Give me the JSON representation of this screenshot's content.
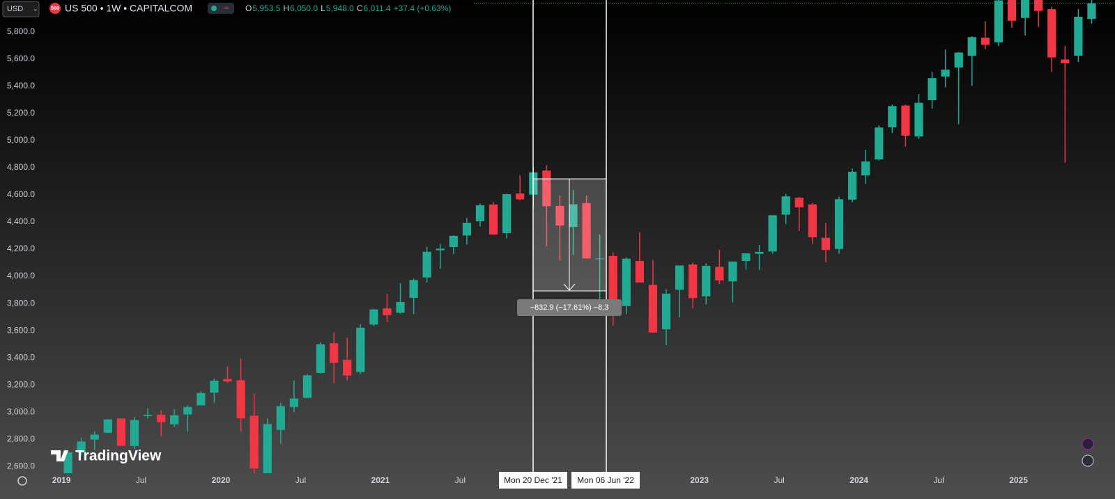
{
  "header": {
    "currency": "USD",
    "badge": "500",
    "symbol": "US 500 • 1W • CAPITALCOM",
    "ohlc": [
      {
        "label": "O",
        "value": "5,953.5"
      },
      {
        "label": "H",
        "value": "6,050.0"
      },
      {
        "label": "L",
        "value": "5,948.0"
      },
      {
        "label": "C",
        "value": "6,011.4"
      }
    ],
    "change": "+37.4 (+0.63%)"
  },
  "watermark": "TradingView",
  "measure": {
    "text": "−832.9 (−17.61%) −8,3",
    "start_label": "Mon 20 Dec '21",
    "end_label": "Mon 06 Jun '22"
  },
  "chart_data": {
    "type": "candlestick",
    "up_color": "#22ab94",
    "down_color": "#f23645",
    "xlim": [
      "2018-12",
      "2025-07"
    ],
    "ylim": [
      2550,
      6035
    ],
    "xticks": [
      {
        "value": "2019-01",
        "label": "2019"
      },
      {
        "value": "2019-07",
        "label": "Jul"
      },
      {
        "value": "2020-01",
        "label": "2020"
      },
      {
        "value": "2020-07",
        "label": "Jul"
      },
      {
        "value": "2021-01",
        "label": "2021"
      },
      {
        "value": "2021-07",
        "label": "Jul"
      },
      {
        "value": "2023-01",
        "label": "2023"
      },
      {
        "value": "2023-07",
        "label": "Jul"
      },
      {
        "value": "2024-01",
        "label": "2024"
      },
      {
        "value": "2024-07",
        "label": "Jul"
      },
      {
        "value": "2025-01",
        "label": "2025"
      }
    ],
    "yticks": [
      {
        "value": 2600,
        "label": "2,600.0"
      },
      {
        "value": 2800,
        "label": "2,800.0"
      },
      {
        "value": 3000,
        "label": "3,000.0"
      },
      {
        "value": 3200,
        "label": "3,200.0"
      },
      {
        "value": 3400,
        "label": "3,400.0"
      },
      {
        "value": 3600,
        "label": "3,600.0"
      },
      {
        "value": 3800,
        "label": "3,800.0"
      },
      {
        "value": 4000,
        "label": "4,000.0"
      },
      {
        "value": 4200,
        "label": "4,200.0"
      },
      {
        "value": 4400,
        "label": "4,400.0"
      },
      {
        "value": 4600,
        "label": "4,600.0"
      },
      {
        "value": 4800,
        "label": "4,800.0"
      },
      {
        "value": 5000,
        "label": "5,000.0"
      },
      {
        "value": 5200,
        "label": "5,200.0"
      },
      {
        "value": 5400,
        "label": "5,400.0"
      },
      {
        "value": 5600,
        "label": "5,600.0"
      },
      {
        "value": 5800,
        "label": "5,800.0"
      }
    ],
    "x": [
      "2019-01",
      "2019-02",
      "2019-03",
      "2019-04",
      "2019-05",
      "2019-06",
      "2019-07",
      "2019-08",
      "2019-09",
      "2019-10",
      "2019-11",
      "2019-12",
      "2020-01",
      "2020-02",
      "2020-03",
      "2020-04",
      "2020-05",
      "2020-06",
      "2020-07",
      "2020-08",
      "2020-09",
      "2020-10",
      "2020-11",
      "2020-12",
      "2021-01",
      "2021-02",
      "2021-03",
      "2021-04",
      "2021-05",
      "2021-06",
      "2021-07",
      "2021-08",
      "2021-09",
      "2021-10",
      "2021-11",
      "2021-12",
      "2022-01",
      "2022-02",
      "2022-03",
      "2022-04",
      "2022-05",
      "2022-06",
      "2022-07",
      "2022-08",
      "2022-09",
      "2022-10",
      "2022-11",
      "2022-12",
      "2023-01",
      "2023-02",
      "2023-03",
      "2023-04",
      "2023-05",
      "2023-06",
      "2023-07",
      "2023-08",
      "2023-09",
      "2023-10",
      "2023-11",
      "2023-12",
      "2024-01",
      "2024-02",
      "2024-03",
      "2024-04",
      "2024-05",
      "2024-06",
      "2024-07",
      "2024-08",
      "2024-09",
      "2024-10",
      "2024-11",
      "2024-12",
      "2025-01",
      "2025-02",
      "2025-03",
      "2025-04",
      "2025-05",
      "2025-06"
    ],
    "open": [
      2477,
      2702,
      2798,
      2848,
      2953,
      2751,
      2971,
      2981,
      2910,
      2983,
      3050,
      3143,
      3244,
      3235,
      2974,
      2499,
      2869,
      3038,
      3105,
      3289,
      3508,
      3385,
      3296,
      3645,
      3764,
      3732,
      3842,
      3992,
      4192,
      4216,
      4301,
      4406,
      4529,
      4318,
      4610,
      4602,
      4779,
      4519,
      4364,
      4540,
      4131,
      4150,
      3781,
      4113,
      3937,
      3610,
      3901,
      4087,
      3853,
      4070,
      3963,
      4113,
      4166,
      4183,
      4454,
      4579,
      4530,
      4284,
      4202,
      4565,
      4743,
      4861,
      5098,
      5258,
      5030,
      5297,
      5471,
      5538,
      5624,
      5757,
      5723,
      6040,
      5903,
      6041,
      5968,
      5597,
      5625,
      5896
    ],
    "high": [
      2708,
      2813,
      2860,
      2949,
      2954,
      2964,
      3028,
      3014,
      3022,
      3050,
      3154,
      3248,
      3338,
      3394,
      3136,
      2955,
      3068,
      3233,
      3280,
      3514,
      3588,
      3550,
      3646,
      3760,
      3870,
      3950,
      3983,
      4218,
      4238,
      4302,
      4430,
      4537,
      4546,
      4608,
      4743,
      4808,
      4819,
      4595,
      4637,
      4594,
      4307,
      4177,
      4140,
      4325,
      4120,
      3905,
      4080,
      4101,
      4095,
      4195,
      4110,
      4170,
      4231,
      4449,
      4607,
      4585,
      4541,
      4394,
      4587,
      4794,
      4932,
      5111,
      5265,
      5264,
      5342,
      5506,
      5670,
      5652,
      5768,
      5879,
      6045,
      6100,
      6128,
      6147,
      5986,
      5696,
      5968,
      6050
    ],
    "low": [
      2444,
      2681,
      2722,
      2848,
      2751,
      2729,
      2953,
      2822,
      2892,
      2856,
      3050,
      3070,
      3214,
      2855,
      2192,
      2447,
      2767,
      2999,
      3102,
      3284,
      3210,
      3233,
      3280,
      3633,
      3663,
      3725,
      3723,
      3955,
      4057,
      4165,
      4234,
      4367,
      4306,
      4279,
      4560,
      4495,
      4223,
      4115,
      4157,
      4129,
      3811,
      3637,
      3721,
      3955,
      3585,
      3492,
      3699,
      3765,
      3795,
      3943,
      3809,
      4049,
      4048,
      4166,
      4385,
      4335,
      4238,
      4104,
      4167,
      4546,
      4683,
      4854,
      5056,
      4954,
      5012,
      5235,
      5391,
      5120,
      5403,
      5674,
      5696,
      5832,
      5773,
      5837,
      5505,
      4835,
      5578,
      5861
    ],
    "close": [
      2704,
      2784,
      2834,
      2946,
      2752,
      2942,
      2980,
      2926,
      2977,
      3038,
      3141,
      3231,
      3226,
      2954,
      2585,
      2912,
      3044,
      3100,
      3271,
      3500,
      3363,
      3270,
      3622,
      3756,
      3714,
      3811,
      3973,
      4181,
      4204,
      4298,
      4395,
      4523,
      4308,
      4605,
      4567,
      4766,
      4516,
      4374,
      4530,
      4132,
      4132,
      3785,
      4130,
      3955,
      3586,
      3872,
      4080,
      3840,
      4077,
      3970,
      4109,
      4169,
      4180,
      4450,
      4589,
      4508,
      4288,
      4194,
      4568,
      4770,
      4846,
      5096,
      5254,
      5036,
      5278,
      5460,
      5522,
      5648,
      5762,
      5705,
      6032,
      5882,
      6041,
      5955,
      5612,
      5569,
      5912,
      6011
    ]
  }
}
